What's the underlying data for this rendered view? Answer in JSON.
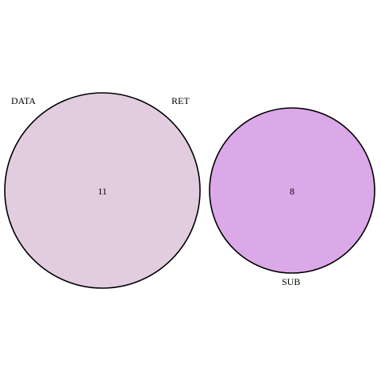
{
  "diagram": {
    "type": "venn",
    "sets": [
      {
        "id": "set-a",
        "labels": [
          "DATA",
          "RET"
        ],
        "count": "11",
        "fill": "#e2cde0",
        "stroke": "#000000"
      },
      {
        "id": "set-b",
        "labels": [
          "SUB"
        ],
        "count": "8",
        "fill": "#dba8e8",
        "stroke": "#000000"
      }
    ]
  }
}
